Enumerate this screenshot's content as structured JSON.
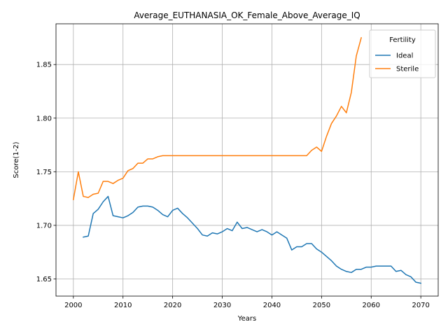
{
  "chart_data": {
    "type": "line",
    "title": "Average_EUTHANASIA_OK_Female_Above_Average_IQ",
    "xlabel": "Years",
    "ylabel": "Score(1-2)",
    "xlim": [
      1996.5,
      2073.5
    ],
    "ylim": [
      1.634,
      1.888
    ],
    "xticks": [
      2000,
      2010,
      2020,
      2030,
      2040,
      2050,
      2060,
      2070
    ],
    "yticks": [
      1.65,
      1.7,
      1.75,
      1.8,
      1.85
    ],
    "ytick_labels": [
      "1.65",
      "1.70",
      "1.75",
      "1.80",
      "1.85"
    ],
    "grid": true,
    "legend": {
      "title": "Fertility",
      "location": "top-right"
    },
    "series": [
      {
        "name": "Ideal",
        "color": "#1f77b4",
        "x": [
          2002,
          2003,
          2004,
          2005,
          2006,
          2007,
          2008,
          2009,
          2010,
          2011,
          2012,
          2013,
          2014,
          2015,
          2016,
          2017,
          2018,
          2019,
          2020,
          2021,
          2022,
          2023,
          2024,
          2025,
          2026,
          2027,
          2028,
          2029,
          2030,
          2031,
          2032,
          2033,
          2034,
          2035,
          2036,
          2037,
          2038,
          2039,
          2040,
          2041,
          2042,
          2043,
          2044,
          2045,
          2046,
          2047,
          2048,
          2049,
          2050,
          2051,
          2052,
          2053,
          2054,
          2055,
          2056,
          2057,
          2058,
          2059,
          2060,
          2061,
          2062,
          2063,
          2064,
          2065,
          2066,
          2067,
          2068,
          2069,
          2070
        ],
        "y": [
          1.689,
          1.69,
          1.711,
          1.715,
          1.722,
          1.727,
          1.709,
          1.708,
          1.707,
          1.709,
          1.712,
          1.717,
          1.718,
          1.718,
          1.717,
          1.714,
          1.71,
          1.708,
          1.714,
          1.716,
          1.711,
          1.707,
          1.702,
          1.697,
          1.691,
          1.69,
          1.693,
          1.692,
          1.694,
          1.697,
          1.695,
          1.703,
          1.697,
          1.698,
          1.696,
          1.694,
          1.696,
          1.694,
          1.691,
          1.694,
          1.691,
          1.688,
          1.677,
          1.68,
          1.68,
          1.683,
          1.683,
          1.678,
          1.675,
          1.671,
          1.667,
          1.662,
          1.659,
          1.657,
          1.656,
          1.659,
          1.659,
          1.661,
          1.661,
          1.662,
          1.662,
          1.662,
          1.662,
          1.657,
          1.658,
          1.654,
          1.652,
          1.647,
          1.646
        ]
      },
      {
        "name": "Sterile",
        "color": "#ff7f0e",
        "x": [
          2000,
          2001,
          2002,
          2003,
          2004,
          2005,
          2006,
          2007,
          2008,
          2009,
          2010,
          2011,
          2012,
          2013,
          2014,
          2015,
          2016,
          2017,
          2018,
          2019,
          2020,
          2021,
          2022,
          2023,
          2024,
          2025,
          2026,
          2027,
          2028,
          2029,
          2030,
          2031,
          2032,
          2033,
          2034,
          2035,
          2036,
          2037,
          2038,
          2039,
          2040,
          2041,
          2042,
          2043,
          2044,
          2045,
          2046,
          2047,
          2048,
          2049,
          2050,
          2051,
          2052,
          2053,
          2054,
          2055,
          2056,
          2057,
          2058
        ],
        "y": [
          1.724,
          1.75,
          1.727,
          1.726,
          1.729,
          1.73,
          1.741,
          1.741,
          1.739,
          1.742,
          1.744,
          1.751,
          1.753,
          1.758,
          1.758,
          1.762,
          1.762,
          1.764,
          1.765,
          1.765,
          1.765,
          1.765,
          1.765,
          1.765,
          1.765,
          1.765,
          1.765,
          1.765,
          1.765,
          1.765,
          1.765,
          1.765,
          1.765,
          1.765,
          1.765,
          1.765,
          1.765,
          1.765,
          1.765,
          1.765,
          1.765,
          1.765,
          1.765,
          1.765,
          1.765,
          1.765,
          1.765,
          1.765,
          1.77,
          1.773,
          1.769,
          1.783,
          1.795,
          1.802,
          1.811,
          1.805,
          1.824,
          1.858,
          1.875
        ]
      }
    ]
  }
}
